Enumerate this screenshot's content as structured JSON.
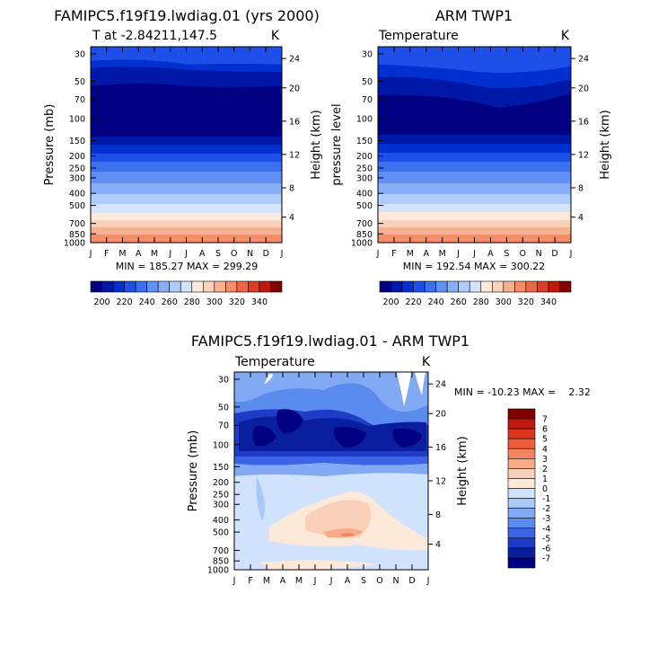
{
  "chart_data": [
    {
      "type": "heatmap",
      "id": "model",
      "title": "FAMIPC5.f19f19.lwdiag.01 (yrs 2000)",
      "subtitle_left": "T at -2.84211,147.5",
      "subtitle_right": "K",
      "ylabel": "Pressure (mb)",
      "ylabel_right": "Height (km)",
      "x_ticks": [
        "J",
        "F",
        "M",
        "A",
        "M",
        "J",
        "J",
        "A",
        "S",
        "O",
        "N",
        "D",
        "J"
      ],
      "pressure_ticks": [
        "30",
        "50",
        "70",
        "100",
        "150",
        "200",
        "250",
        "300",
        "400",
        "500",
        "700",
        "850",
        "1000"
      ],
      "height_ticks": [
        "24",
        "20",
        "16",
        "12",
        "8",
        "4"
      ],
      "min": 185.27,
      "max": 299.29,
      "minmax_label": "MIN = 185.27 MAX = 299.29",
      "palette": [
        "#000080",
        "#0018a8",
        "#0030d0",
        "#1c50e8",
        "#3c70f0",
        "#6090f4",
        "#88b0f8",
        "#b0ccfa",
        "#d4e4fc",
        "#fde9d9",
        "#fbd1b7",
        "#f8b090",
        "#f48c68",
        "#ee6642",
        "#e03c24",
        "#c01810",
        "#800000"
      ],
      "colorbar_labels": [
        "200",
        "220",
        "240",
        "260",
        "280",
        "300",
        "320",
        "340"
      ]
    },
    {
      "type": "heatmap",
      "id": "obs",
      "title": "ARM TWP1",
      "subtitle_left": "Temperature",
      "subtitle_right": "K",
      "ylabel": "pressure level",
      "ylabel_right": "Height (km)",
      "x_ticks": [
        "J",
        "F",
        "M",
        "A",
        "M",
        "J",
        "J",
        "A",
        "S",
        "O",
        "N",
        "D",
        "J"
      ],
      "pressure_ticks": [
        "30",
        "50",
        "70",
        "100",
        "150",
        "200",
        "250",
        "300",
        "400",
        "500",
        "700",
        "850",
        "1000"
      ],
      "height_ticks": [
        "24",
        "20",
        "16",
        "12",
        "8",
        "4"
      ],
      "min": 192.54,
      "max": 300.22,
      "minmax_label": "MIN = 192.54 MAX = 300.22",
      "colorbar_labels": [
        "200",
        "220",
        "240",
        "260",
        "280",
        "300",
        "320",
        "340"
      ]
    },
    {
      "type": "heatmap",
      "id": "diff",
      "title": "FAMIPC5.f19f19.lwdiag.01 - ARM TWP1",
      "subtitle_left": "Temperature",
      "subtitle_right": "K",
      "ylabel": "Pressure (mb)",
      "ylabel_right": "Height (km)",
      "x_ticks": [
        "J",
        "F",
        "M",
        "A",
        "M",
        "J",
        "J",
        "A",
        "S",
        "O",
        "N",
        "D",
        "J"
      ],
      "pressure_ticks": [
        "30",
        "50",
        "70",
        "100",
        "150",
        "200",
        "250",
        "300",
        "400",
        "500",
        "700",
        "850",
        "1000"
      ],
      "height_ticks": [
        "24",
        "20",
        "16",
        "12",
        "8",
        "4"
      ],
      "min": -10.23,
      "max": 2.32,
      "minmax_label": "MIN = -10.23 MAX =    2.32",
      "palette": [
        "#000080",
        "#0a1ea0",
        "#1e3cc8",
        "#3c64e6",
        "#5a8cf0",
        "#82aaf4",
        "#a8c8f8",
        "#d0e2fc",
        "#fde9d9",
        "#fbd0b8",
        "#f8aa88",
        "#f48460",
        "#ee5c3a",
        "#dc3620",
        "#c01810",
        "#800000"
      ],
      "colorbar_labels": [
        "7",
        "6",
        "5",
        "4",
        "3",
        "2",
        "1",
        "0",
        "-1",
        "-2",
        "-3",
        "-4",
        "-5",
        "-6",
        "-7"
      ]
    }
  ]
}
